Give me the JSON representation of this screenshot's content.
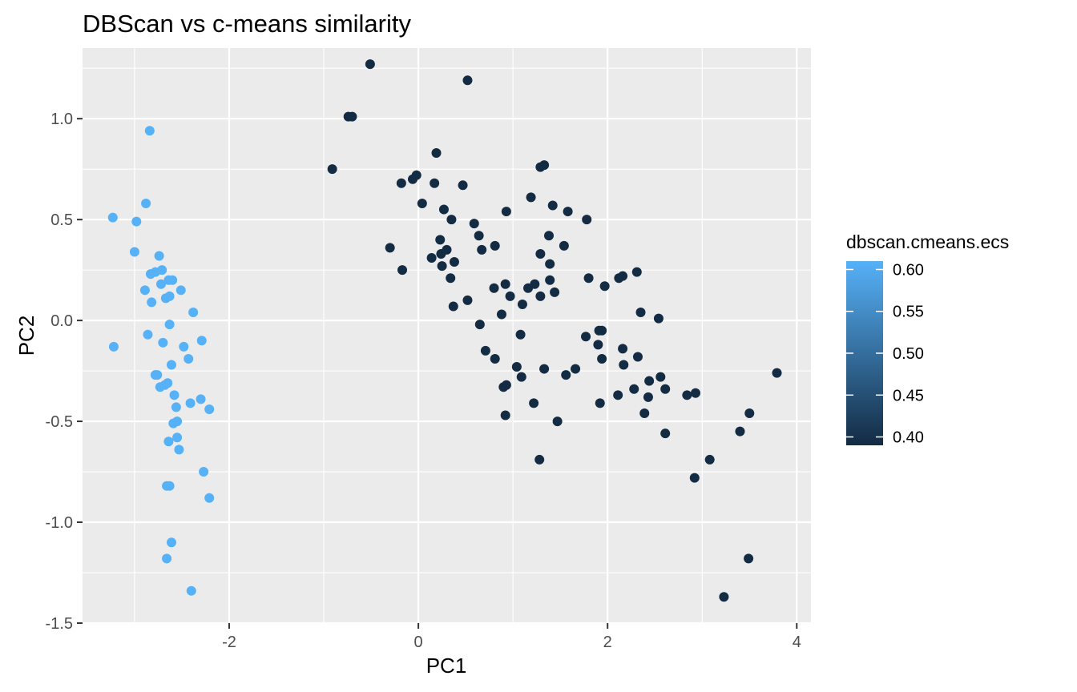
{
  "chart_data": {
    "type": "scatter",
    "title": "DBScan vs c-means similarity",
    "xlabel": "PC1",
    "ylabel": "PC2",
    "xlim": [
      -3.55,
      4.15
    ],
    "ylim": [
      -1.5,
      1.35
    ],
    "x_ticks": [
      -2,
      0,
      2,
      4
    ],
    "x_tick_labels": [
      "-2",
      "0",
      "2",
      "4"
    ],
    "y_ticks": [
      -1.5,
      -1.0,
      -0.5,
      0.0,
      0.5,
      1.0
    ],
    "y_tick_labels": [
      "-1.5",
      "-1.0",
      "-0.5",
      "0.0",
      "0.5",
      "1.0"
    ],
    "grid": true,
    "legend": {
      "title": "dbscan.cmeans.ecs",
      "placement": "right",
      "range": [
        0.39,
        0.61
      ],
      "breaks": [
        0.6,
        0.55,
        0.5,
        0.45,
        0.4
      ],
      "break_labels": [
        "0.60",
        "0.55",
        "0.50",
        "0.45",
        "0.40"
      ]
    },
    "colors": {
      "low": "#132b43",
      "high": "#56b1f7",
      "panel": "#ebebeb",
      "grid_major": "#ffffff"
    },
    "series": [
      {
        "ecs": 0.61,
        "color": "#56b1f7",
        "points": [
          [
            -2.84,
            0.94
          ],
          [
            -3.23,
            0.51
          ],
          [
            -2.98,
            0.49
          ],
          [
            -2.88,
            0.58
          ],
          [
            -3.0,
            0.34
          ],
          [
            -2.74,
            0.32
          ],
          [
            -2.83,
            0.23
          ],
          [
            -2.78,
            0.24
          ],
          [
            -2.71,
            0.25
          ],
          [
            -2.64,
            0.2
          ],
          [
            -2.6,
            0.2
          ],
          [
            -2.72,
            0.18
          ],
          [
            -2.89,
            0.15
          ],
          [
            -2.51,
            0.15
          ],
          [
            -2.67,
            0.11
          ],
          [
            -2.63,
            0.12
          ],
          [
            -2.82,
            0.09
          ],
          [
            -2.38,
            0.04
          ],
          [
            -2.63,
            -0.02
          ],
          [
            -3.22,
            -0.13
          ],
          [
            -2.86,
            -0.07
          ],
          [
            -2.7,
            -0.11
          ],
          [
            -2.29,
            -0.1
          ],
          [
            -2.48,
            -0.13
          ],
          [
            -2.43,
            -0.19
          ],
          [
            -2.61,
            -0.22
          ],
          [
            -2.78,
            -0.27
          ],
          [
            -2.76,
            -0.27
          ],
          [
            -2.73,
            -0.33
          ],
          [
            -2.68,
            -0.32
          ],
          [
            -2.65,
            -0.31
          ],
          [
            -2.58,
            -0.37
          ],
          [
            -2.3,
            -0.39
          ],
          [
            -2.41,
            -0.41
          ],
          [
            -2.56,
            -0.43
          ],
          [
            -2.21,
            -0.44
          ],
          [
            -2.59,
            -0.51
          ],
          [
            -2.55,
            -0.5
          ],
          [
            -2.55,
            -0.58
          ],
          [
            -2.64,
            -0.6
          ],
          [
            -2.53,
            -0.64
          ],
          [
            -2.27,
            -0.75
          ],
          [
            -2.66,
            -0.82
          ],
          [
            -2.63,
            -0.82
          ],
          [
            -2.21,
            -0.88
          ],
          [
            -2.61,
            -1.1
          ],
          [
            -2.66,
            -1.18
          ],
          [
            -2.4,
            -1.34
          ]
        ]
      },
      {
        "ecs": 0.39,
        "color": "#132b43",
        "points": [
          [
            -0.51,
            1.27
          ],
          [
            0.52,
            1.19
          ],
          [
            -0.74,
            1.01
          ],
          [
            -0.7,
            1.01
          ],
          [
            -0.91,
            0.75
          ],
          [
            0.19,
            0.83
          ],
          [
            -0.18,
            0.68
          ],
          [
            -0.06,
            0.7
          ],
          [
            -0.02,
            0.72
          ],
          [
            0.17,
            0.68
          ],
          [
            0.47,
            0.67
          ],
          [
            0.04,
            0.58
          ],
          [
            0.27,
            0.55
          ],
          [
            0.35,
            0.5
          ],
          [
            0.93,
            0.54
          ],
          [
            1.19,
            0.61
          ],
          [
            1.29,
            0.76
          ],
          [
            1.33,
            0.77
          ],
          [
            1.42,
            0.57
          ],
          [
            1.58,
            0.54
          ],
          [
            1.78,
            0.5
          ],
          [
            0.59,
            0.48
          ],
          [
            0.64,
            0.42
          ],
          [
            0.23,
            0.4
          ],
          [
            0.67,
            0.35
          ],
          [
            0.81,
            0.37
          ],
          [
            -0.3,
            0.36
          ],
          [
            0.14,
            0.31
          ],
          [
            0.24,
            0.33
          ],
          [
            0.3,
            0.35
          ],
          [
            0.38,
            0.29
          ],
          [
            0.25,
            0.27
          ],
          [
            -0.17,
            0.25
          ],
          [
            0.34,
            0.21
          ],
          [
            1.29,
            0.33
          ],
          [
            1.38,
            0.42
          ],
          [
            1.39,
            0.28
          ],
          [
            1.54,
            0.37
          ],
          [
            0.8,
            0.16
          ],
          [
            0.92,
            0.18
          ],
          [
            1.16,
            0.16
          ],
          [
            1.23,
            0.18
          ],
          [
            1.39,
            0.2
          ],
          [
            1.44,
            0.14
          ],
          [
            0.97,
            0.12
          ],
          [
            1.29,
            0.12
          ],
          [
            1.1,
            0.08
          ],
          [
            0.52,
            0.1
          ],
          [
            0.37,
            0.07
          ],
          [
            0.88,
            0.03
          ],
          [
            1.8,
            0.21
          ],
          [
            1.97,
            0.17
          ],
          [
            2.12,
            0.21
          ],
          [
            2.16,
            0.22
          ],
          [
            2.31,
            0.24
          ],
          [
            2.35,
            0.04
          ],
          [
            2.54,
            0.01
          ],
          [
            0.65,
            -0.02
          ],
          [
            1.08,
            -0.07
          ],
          [
            0.71,
            -0.15
          ],
          [
            0.81,
            -0.19
          ],
          [
            1.04,
            -0.23
          ],
          [
            1.09,
            -0.28
          ],
          [
            1.33,
            -0.24
          ],
          [
            1.56,
            -0.27
          ],
          [
            1.66,
            -0.24
          ],
          [
            1.77,
            -0.08
          ],
          [
            1.91,
            -0.05
          ],
          [
            1.94,
            -0.05
          ],
          [
            1.9,
            -0.12
          ],
          [
            1.94,
            -0.19
          ],
          [
            2.16,
            -0.14
          ],
          [
            2.17,
            -0.22
          ],
          [
            2.32,
            -0.18
          ],
          [
            2.44,
            -0.3
          ],
          [
            2.56,
            -0.28
          ],
          [
            2.61,
            -0.34
          ],
          [
            2.28,
            -0.34
          ],
          [
            2.11,
            -0.37
          ],
          [
            2.43,
            -0.38
          ],
          [
            0.9,
            -0.33
          ],
          [
            0.93,
            -0.32
          ],
          [
            1.22,
            -0.41
          ],
          [
            1.47,
            -0.5
          ],
          [
            0.92,
            -0.47
          ],
          [
            1.92,
            -0.41
          ],
          [
            2.39,
            -0.46
          ],
          [
            2.61,
            -0.56
          ],
          [
            2.84,
            -0.37
          ],
          [
            2.93,
            -0.36
          ],
          [
            3.79,
            -0.26
          ],
          [
            3.5,
            -0.46
          ],
          [
            3.4,
            -0.55
          ],
          [
            3.08,
            -0.69
          ],
          [
            2.92,
            -0.78
          ],
          [
            3.49,
            -1.18
          ],
          [
            3.23,
            -1.37
          ],
          [
            1.28,
            -0.69
          ]
        ]
      }
    ]
  }
}
